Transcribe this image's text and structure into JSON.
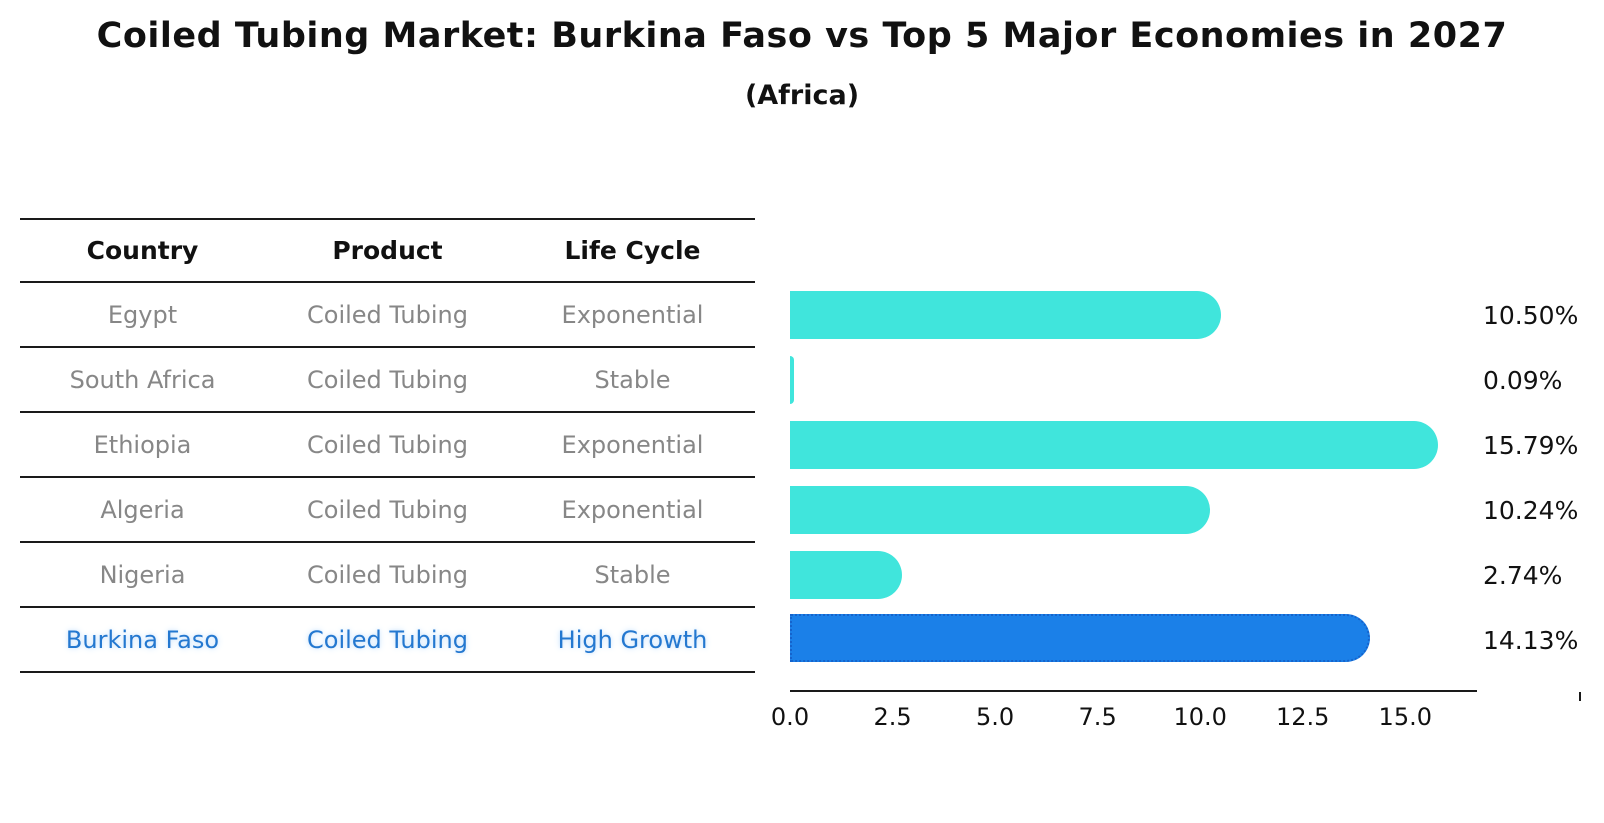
{
  "title": "Coiled Tubing Market: Burkina Faso vs Top 5 Major Economies in 2027",
  "subtitle": "(Africa)",
  "table": {
    "headers": [
      "Country",
      "Product",
      "Life Cycle"
    ],
    "rows": [
      {
        "country": "Egypt",
        "product": "Coiled Tubing",
        "life_cycle": "Exponential"
      },
      {
        "country": "South Africa",
        "product": "Coiled Tubing",
        "life_cycle": "Stable"
      },
      {
        "country": "Ethiopia",
        "product": "Coiled Tubing",
        "life_cycle": "Exponential"
      },
      {
        "country": "Algeria",
        "product": "Coiled Tubing",
        "life_cycle": "Exponential"
      },
      {
        "country": "Nigeria",
        "product": "Coiled Tubing",
        "life_cycle": "Stable"
      },
      {
        "country": "Burkina Faso",
        "product": "Coiled Tubing",
        "life_cycle": "High Growth"
      }
    ],
    "highlight_row_index": 5,
    "highlight_text_color": "#2478d0",
    "normal_text_color": "#878787"
  },
  "chart_data": {
    "type": "bar",
    "orientation": "horizontal",
    "title": "Coiled Tubing Market: Burkina Faso vs Top 5 Major Economies in 2027 (Africa)",
    "categories": [
      "Egypt",
      "South Africa",
      "Ethiopia",
      "Algeria",
      "Nigeria",
      "Burkina Faso"
    ],
    "values": [
      10.5,
      0.09,
      15.79,
      10.24,
      2.74,
      14.13
    ],
    "value_labels": [
      "10.50%",
      "0.09%",
      "15.79%",
      "10.24%",
      "2.74%",
      "14.13%"
    ],
    "unit": "percent",
    "xlim": [
      0,
      16.7
    ],
    "x_ticks": [
      0.0,
      2.5,
      5.0,
      7.5,
      10.0,
      12.5,
      15.0
    ],
    "x_tick_labels": [
      "0.0",
      "2.5",
      "5.0",
      "7.5",
      "10.0",
      "12.5",
      "15.0"
    ],
    "grid": false,
    "legend": false,
    "bar_color": "#40E5DC",
    "highlight_color": "#1B80E8",
    "highlight_border_color": "#1563cc",
    "highlight_index": 5
  }
}
